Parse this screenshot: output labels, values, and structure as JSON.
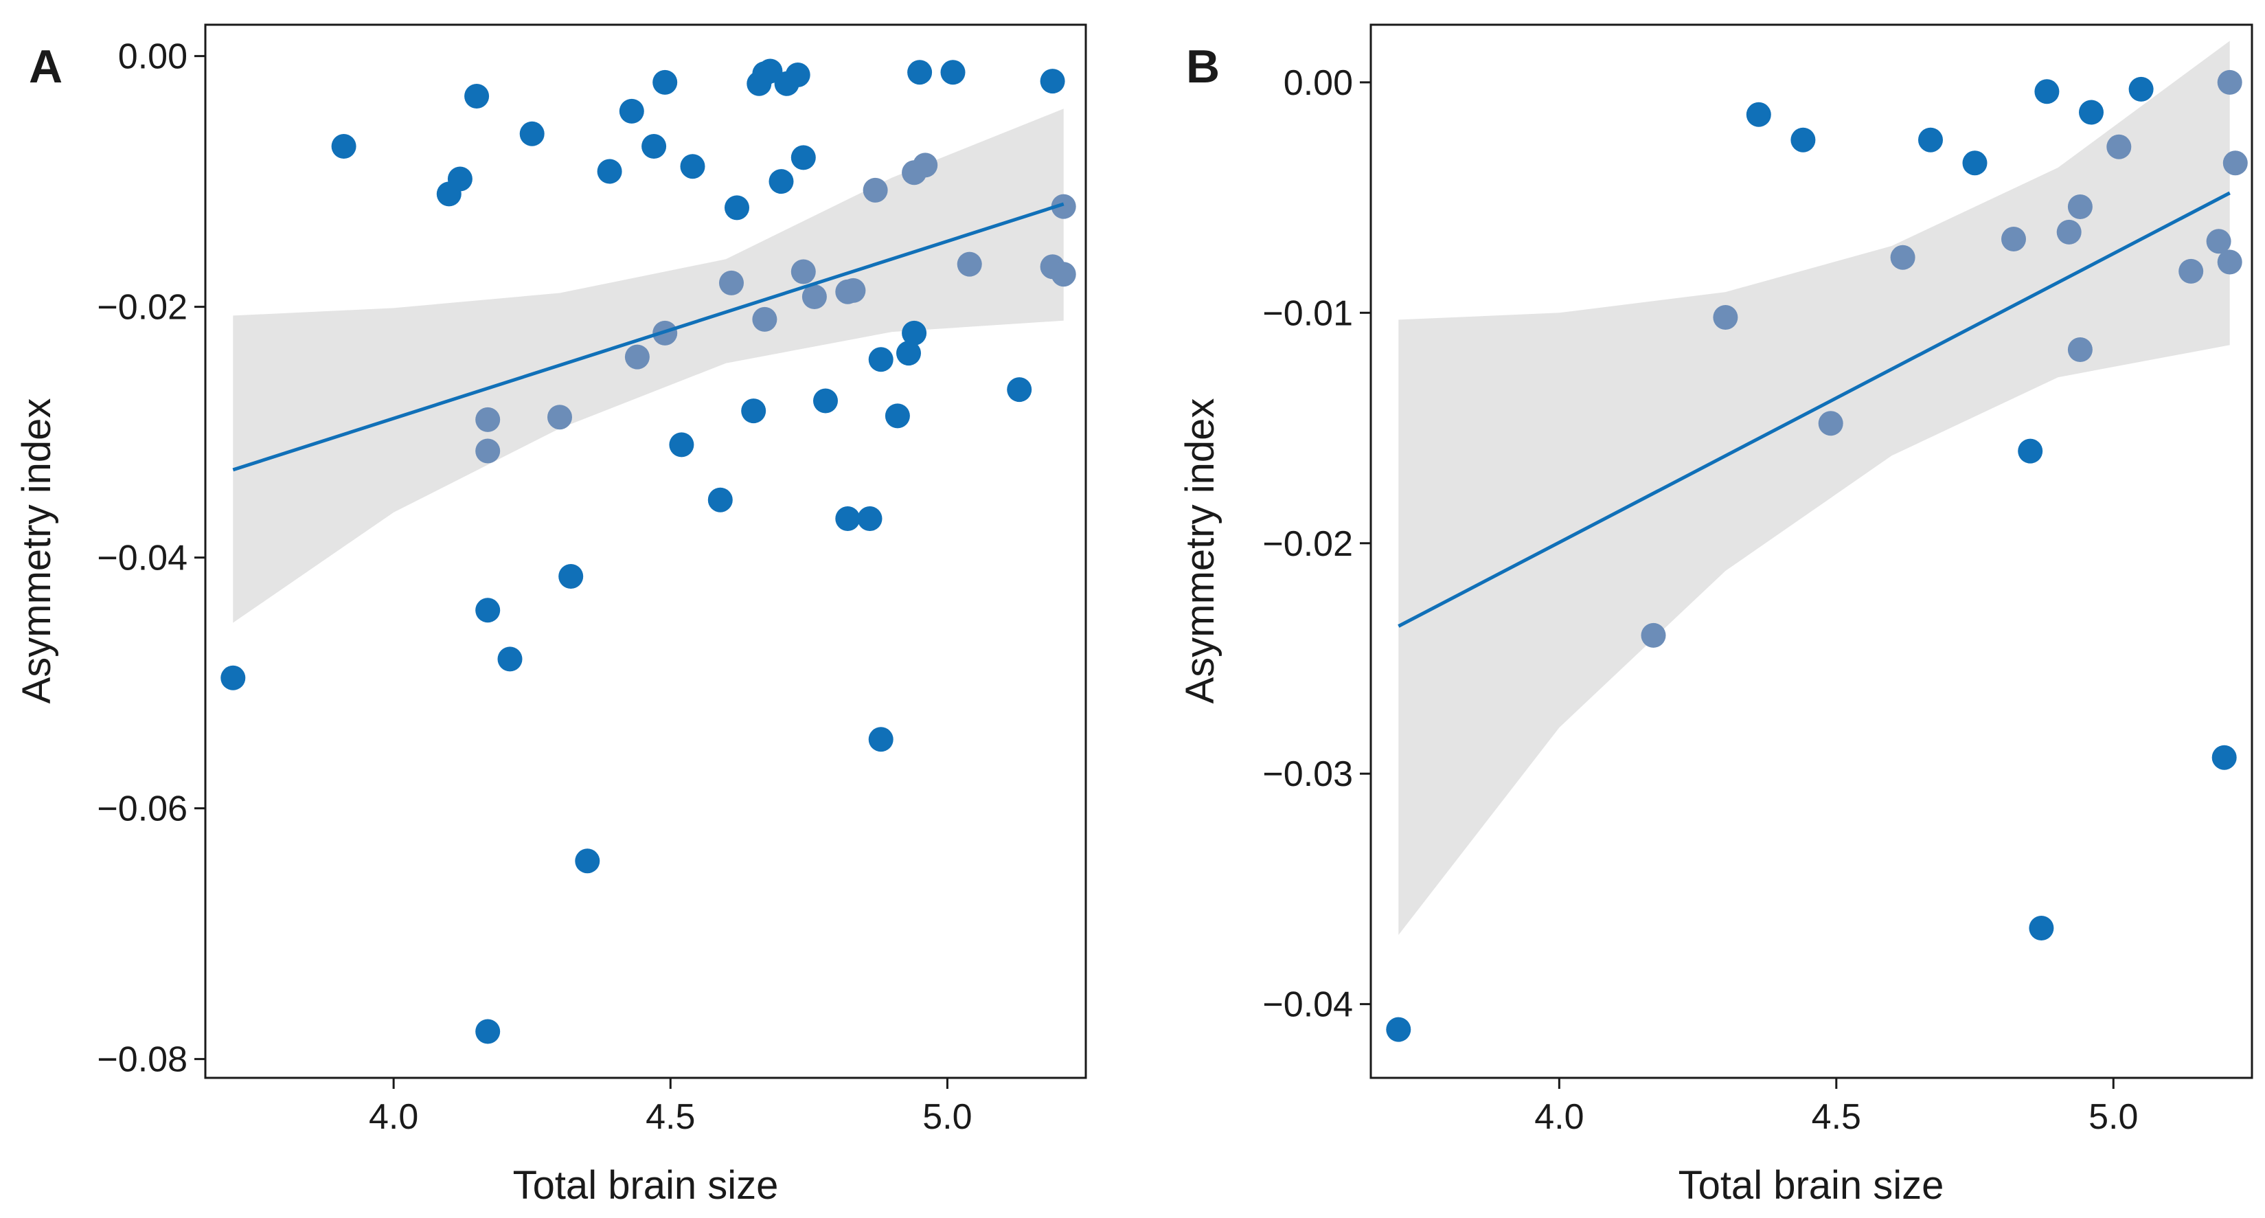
{
  "figure": {
    "background": "#ffffff"
  },
  "style": {
    "point_color": "#1070b8",
    "point_inside_band_color": "#6c8db8",
    "line_color": "#1070b8",
    "band_color": "#e4e4e4",
    "axis_color": "#1a1a1a"
  },
  "chart_data": [
    {
      "panel": "A",
      "type": "scatter",
      "xlabel": "Total brain size",
      "ylabel": "Asymmetry index",
      "xlim": [
        3.66,
        5.25
      ],
      "ylim": [
        -0.0815,
        0.0025
      ],
      "xticks": [
        4.0,
        4.5,
        5.0
      ],
      "xtick_labels": [
        "4.0",
        "4.5",
        "5.0"
      ],
      "yticks": [
        0.0,
        -0.02,
        -0.04,
        -0.06,
        -0.08
      ],
      "ytick_labels": [
        "0.00",
        "−0.02",
        "−0.04",
        "−0.06",
        "−0.08"
      ],
      "fit": {
        "x": [
          3.71,
          5.21
        ],
        "y": [
          -0.033,
          -0.0118
        ]
      },
      "band": {
        "x": [
          3.71,
          4.0,
          4.3,
          4.6,
          4.9,
          5.21
        ],
        "upper": [
          -0.0207,
          -0.0201,
          -0.0189,
          -0.0162,
          -0.0097,
          -0.0042
        ],
        "lower": [
          -0.0452,
          -0.0364,
          -0.0297,
          -0.0245,
          -0.022,
          -0.0211
        ]
      },
      "points": [
        {
          "x": 3.71,
          "y": -0.0496
        },
        {
          "x": 3.91,
          "y": -0.0072
        },
        {
          "x": 4.1,
          "y": -0.011
        },
        {
          "x": 4.12,
          "y": -0.0098
        },
        {
          "x": 4.15,
          "y": -0.0032
        },
        {
          "x": 4.17,
          "y": -0.029
        },
        {
          "x": 4.17,
          "y": -0.0315
        },
        {
          "x": 4.17,
          "y": -0.0442
        },
        {
          "x": 4.17,
          "y": -0.0778
        },
        {
          "x": 4.21,
          "y": -0.0481
        },
        {
          "x": 4.25,
          "y": -0.0062
        },
        {
          "x": 4.3,
          "y": -0.0288
        },
        {
          "x": 4.32,
          "y": -0.0415
        },
        {
          "x": 4.35,
          "y": -0.0642
        },
        {
          "x": 4.39,
          "y": -0.0092
        },
        {
          "x": 4.43,
          "y": -0.0044
        },
        {
          "x": 4.44,
          "y": -0.024
        },
        {
          "x": 4.47,
          "y": -0.0072
        },
        {
          "x": 4.49,
          "y": -0.0021
        },
        {
          "x": 4.49,
          "y": -0.0221
        },
        {
          "x": 4.52,
          "y": -0.031
        },
        {
          "x": 4.54,
          "y": -0.0088
        },
        {
          "x": 4.59,
          "y": -0.0354
        },
        {
          "x": 4.61,
          "y": -0.0181
        },
        {
          "x": 4.62,
          "y": -0.0121
        },
        {
          "x": 4.65,
          "y": -0.0283
        },
        {
          "x": 4.66,
          "y": -0.0022
        },
        {
          "x": 4.67,
          "y": -0.0014
        },
        {
          "x": 4.68,
          "y": -0.0012
        },
        {
          "x": 4.67,
          "y": -0.021
        },
        {
          "x": 4.7,
          "y": -0.01
        },
        {
          "x": 4.71,
          "y": -0.0022
        },
        {
          "x": 4.73,
          "y": -0.0015
        },
        {
          "x": 4.74,
          "y": -0.0081
        },
        {
          "x": 4.74,
          "y": -0.0172
        },
        {
          "x": 4.76,
          "y": -0.0192
        },
        {
          "x": 4.78,
          "y": -0.0275
        },
        {
          "x": 4.82,
          "y": -0.0369
        },
        {
          "x": 4.82,
          "y": -0.0188
        },
        {
          "x": 4.83,
          "y": -0.0187
        },
        {
          "x": 4.86,
          "y": -0.0369
        },
        {
          "x": 4.87,
          "y": -0.0107
        },
        {
          "x": 4.88,
          "y": -0.0242
        },
        {
          "x": 4.88,
          "y": -0.0545
        },
        {
          "x": 4.91,
          "y": -0.0287
        },
        {
          "x": 4.93,
          "y": -0.0237
        },
        {
          "x": 4.94,
          "y": -0.0221
        },
        {
          "x": 4.94,
          "y": -0.0093
        },
        {
          "x": 4.95,
          "y": -0.0013
        },
        {
          "x": 4.96,
          "y": -0.0087
        },
        {
          "x": 5.01,
          "y": -0.0013
        },
        {
          "x": 5.04,
          "y": -0.0166
        },
        {
          "x": 5.13,
          "y": -0.0266
        },
        {
          "x": 5.19,
          "y": -0.002
        },
        {
          "x": 5.19,
          "y": -0.0168
        },
        {
          "x": 5.21,
          "y": -0.012
        },
        {
          "x": 5.21,
          "y": -0.0174
        }
      ]
    },
    {
      "panel": "B",
      "type": "scatter",
      "xlabel": "Total brain size",
      "ylabel": "Asymmetry index",
      "xlim": [
        3.66,
        5.25
      ],
      "ylim": [
        -0.0432,
        0.0025
      ],
      "xticks": [
        4.0,
        4.5,
        5.0
      ],
      "xtick_labels": [
        "4.0",
        "4.5",
        "5.0"
      ],
      "yticks": [
        0.0,
        -0.01,
        -0.02,
        -0.03,
        -0.04
      ],
      "ytick_labels": [
        "0.00",
        "−0.01",
        "−0.02",
        "−0.03",
        "−0.04"
      ],
      "fit": {
        "x": [
          3.71,
          5.21
        ],
        "y": [
          -0.0236,
          -0.0048
        ]
      },
      "band": {
        "x": [
          3.71,
          4.0,
          4.3,
          4.6,
          4.9,
          5.21
        ],
        "upper": [
          -0.0103,
          -0.01,
          -0.0091,
          -0.0071,
          -0.0037,
          0.0018
        ],
        "lower": [
          -0.037,
          -0.028,
          -0.0212,
          -0.0162,
          -0.0128,
          -0.0114
        ]
      },
      "points": [
        {
          "x": 3.71,
          "y": -0.0411
        },
        {
          "x": 4.17,
          "y": -0.024
        },
        {
          "x": 4.3,
          "y": -0.0102
        },
        {
          "x": 4.36,
          "y": -0.0014
        },
        {
          "x": 4.44,
          "y": -0.0025
        },
        {
          "x": 4.49,
          "y": -0.0148
        },
        {
          "x": 4.62,
          "y": -0.0076
        },
        {
          "x": 4.67,
          "y": -0.0025
        },
        {
          "x": 4.75,
          "y": -0.0035
        },
        {
          "x": 4.82,
          "y": -0.0068
        },
        {
          "x": 4.85,
          "y": -0.016
        },
        {
          "x": 4.87,
          "y": -0.0367
        },
        {
          "x": 4.88,
          "y": -0.0004
        },
        {
          "x": 4.92,
          "y": -0.0065
        },
        {
          "x": 4.94,
          "y": -0.0054
        },
        {
          "x": 4.94,
          "y": -0.0116
        },
        {
          "x": 4.96,
          "y": -0.0013
        },
        {
          "x": 5.01,
          "y": -0.0028
        },
        {
          "x": 5.05,
          "y": -0.0003
        },
        {
          "x": 5.14,
          "y": -0.0082
        },
        {
          "x": 5.19,
          "y": -0.0069
        },
        {
          "x": 5.2,
          "y": -0.0293
        },
        {
          "x": 5.21,
          "y": 0.0
        },
        {
          "x": 5.21,
          "y": -0.0078
        },
        {
          "x": 5.22,
          "y": -0.0035
        }
      ]
    }
  ]
}
